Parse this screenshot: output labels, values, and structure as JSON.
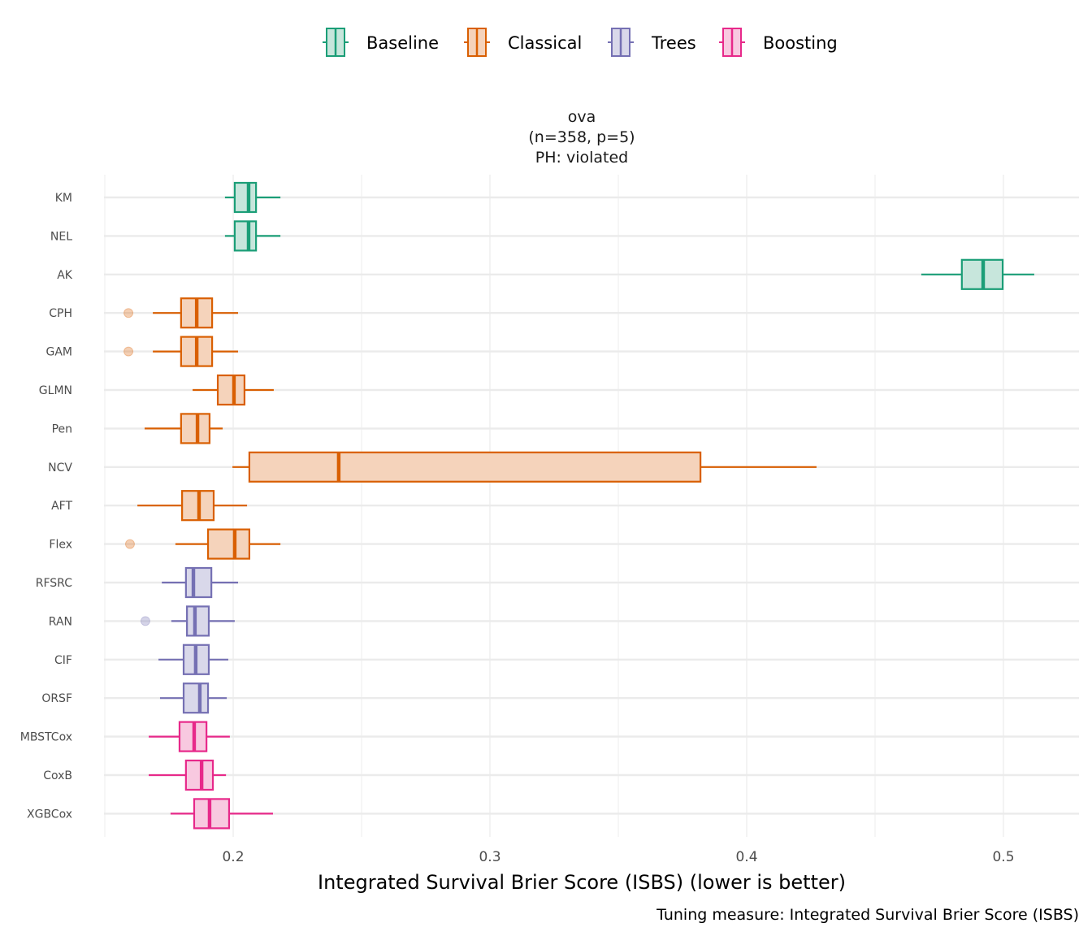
{
  "chart_data": {
    "type": "boxplot",
    "orientation": "horizontal",
    "facet_title": [
      "ova",
      "(n=358, p=5)",
      "PH: violated"
    ],
    "xlabel": "Integrated Survival Brier Score (ISBS) (lower is better)",
    "caption": "Tuning measure: Integrated Survival Brier Score (ISBS)",
    "ylabel": "",
    "xlim": [
      0.1495,
      0.528
    ],
    "xticks": [
      0.2,
      0.3,
      0.4,
      0.5
    ],
    "xtick_labels": [
      "0.2",
      "0.3",
      "0.4",
      "0.5"
    ],
    "minor_gridlines": [
      0.15,
      0.25,
      0.35,
      0.45
    ],
    "grid": true,
    "legend": {
      "position": "top",
      "entries": [
        {
          "name": "Baseline",
          "color": "#1b9e77"
        },
        {
          "name": "Classical",
          "color": "#d95f02"
        },
        {
          "name": "Trees",
          "color": "#7570b3"
        },
        {
          "name": "Boosting",
          "color": "#e7298a"
        }
      ]
    },
    "series": [
      {
        "name": "KM",
        "group": "Baseline",
        "min": 0.1968,
        "q1": 0.2006,
        "median": 0.206,
        "q3": 0.2089,
        "max": 0.2184,
        "outliers": []
      },
      {
        "name": "NEL",
        "group": "Baseline",
        "min": 0.1968,
        "q1": 0.2006,
        "median": 0.206,
        "q3": 0.2089,
        "max": 0.2184,
        "outliers": []
      },
      {
        "name": "AK",
        "group": "Baseline",
        "min": 0.468,
        "q1": 0.4838,
        "median": 0.4921,
        "q3": 0.4997,
        "max": 0.512,
        "outliers": []
      },
      {
        "name": "CPH",
        "group": "Classical",
        "min": 0.1687,
        "q1": 0.1797,
        "median": 0.1858,
        "q3": 0.1918,
        "max": 0.2019,
        "outliers": [
          0.1592
        ]
      },
      {
        "name": "GAM",
        "group": "Classical",
        "min": 0.1687,
        "q1": 0.1797,
        "median": 0.1858,
        "q3": 0.1918,
        "max": 0.2019,
        "outliers": [
          0.1592
        ]
      },
      {
        "name": "GLMN",
        "group": "Classical",
        "min": 0.1842,
        "q1": 0.194,
        "median": 0.2003,
        "q3": 0.2044,
        "max": 0.2158,
        "outliers": []
      },
      {
        "name": "Pen",
        "group": "Classical",
        "min": 0.1655,
        "q1": 0.1797,
        "median": 0.1861,
        "q3": 0.1908,
        "max": 0.1959,
        "outliers": []
      },
      {
        "name": "NCV",
        "group": "Classical",
        "min": 0.1997,
        "q1": 0.2063,
        "median": 0.2411,
        "q3": 0.382,
        "max": 0.4272,
        "outliers": []
      },
      {
        "name": "AFT",
        "group": "Classical",
        "min": 0.1627,
        "q1": 0.1801,
        "median": 0.1867,
        "q3": 0.1924,
        "max": 0.2054,
        "outliers": []
      },
      {
        "name": "Flex",
        "group": "Classical",
        "min": 0.1775,
        "q1": 0.1902,
        "median": 0.2006,
        "q3": 0.2063,
        "max": 0.2184,
        "outliers": [
          0.1598
        ]
      },
      {
        "name": "RFSRC",
        "group": "Trees",
        "min": 0.1722,
        "q1": 0.1816,
        "median": 0.1845,
        "q3": 0.1915,
        "max": 0.2019,
        "outliers": []
      },
      {
        "name": "RAN",
        "group": "Trees",
        "min": 0.1759,
        "q1": 0.182,
        "median": 0.1851,
        "q3": 0.1905,
        "max": 0.2006,
        "outliers": [
          0.1658
        ]
      },
      {
        "name": "CIF",
        "group": "Trees",
        "min": 0.1709,
        "q1": 0.1807,
        "median": 0.1854,
        "q3": 0.1905,
        "max": 0.1981,
        "outliers": []
      },
      {
        "name": "ORSF",
        "group": "Trees",
        "min": 0.1715,
        "q1": 0.1807,
        "median": 0.187,
        "q3": 0.1902,
        "max": 0.1975,
        "outliers": []
      },
      {
        "name": "MBSTCox",
        "group": "Boosting",
        "min": 0.1671,
        "q1": 0.1791,
        "median": 0.1848,
        "q3": 0.1896,
        "max": 0.1987,
        "outliers": []
      },
      {
        "name": "CoxB",
        "group": "Boosting",
        "min": 0.1671,
        "q1": 0.1816,
        "median": 0.1877,
        "q3": 0.1921,
        "max": 0.1972,
        "outliers": []
      },
      {
        "name": "XGBCox",
        "group": "Boosting",
        "min": 0.1756,
        "q1": 0.1848,
        "median": 0.1908,
        "q3": 0.1984,
        "max": 0.2155,
        "outliers": []
      }
    ]
  }
}
